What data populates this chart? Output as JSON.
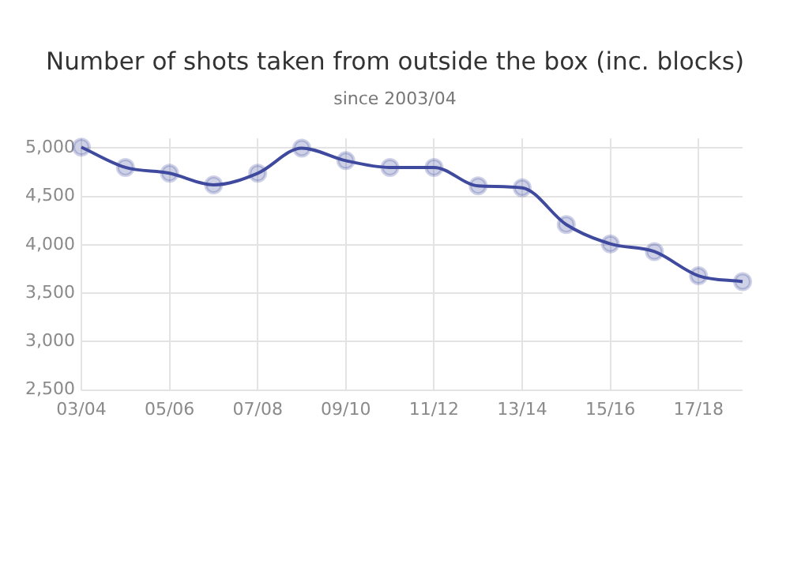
{
  "chart_data": {
    "type": "line",
    "title": "Number of shots taken from outside the box (inc. blocks)",
    "subtitle": "since 2003/04",
    "categories": [
      "03/04",
      null,
      "05/06",
      null,
      "07/08",
      null,
      "09/10",
      null,
      "11/12",
      null,
      "13/14",
      null,
      "15/16",
      null,
      "17/18",
      null
    ],
    "series": [
      {
        "color": "#3f4a9e",
        "values": [
          5010,
          4800,
          4740,
          4620,
          4740,
          5000,
          4870,
          4800,
          4800,
          4610,
          4590,
          4210,
          4010,
          3930,
          3680,
          3620
        ]
      }
    ],
    "ylim": [
      2500,
      5100
    ],
    "yticks": [
      {
        "value": 2500,
        "label": "2,500"
      },
      {
        "value": 3000,
        "label": "3,000"
      },
      {
        "value": 3500,
        "label": "3,500"
      },
      {
        "value": 4000,
        "label": "4,000"
      },
      {
        "value": 4500,
        "label": "4,500"
      },
      {
        "value": 5000,
        "label": "5,000"
      }
    ],
    "grid": true,
    "marker": "circle",
    "line_style": "solid"
  }
}
